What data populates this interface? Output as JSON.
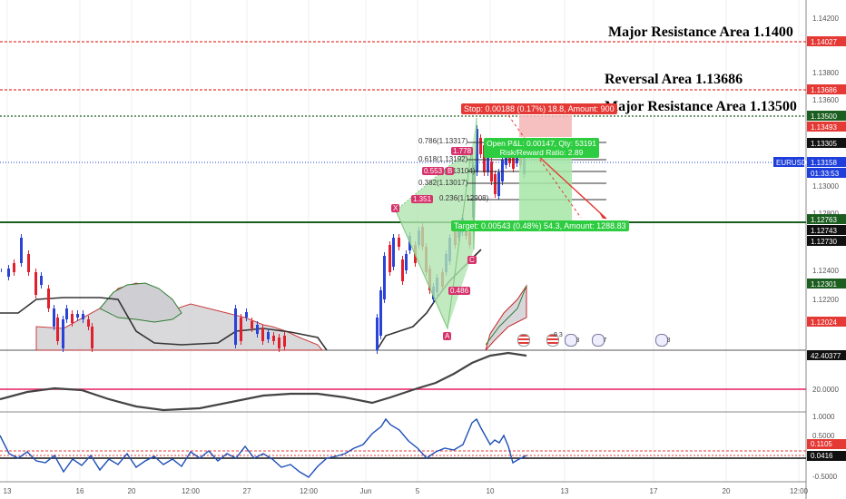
{
  "annotations": {
    "major_resistance_top": "Major Resistance Area 1.1400",
    "reversal_area": "Reversal Area 1.13686",
    "major_resistance_mid": "Major Resistance Area 1.13500"
  },
  "price_axis": {
    "ticks": [
      "1.14200",
      "1.13800",
      "1.13600",
      "1.13000",
      "1.12800",
      "1.12400",
      "1.12200"
    ],
    "labels": {
      "l14027": "1.14027",
      "l13686": "1.13686",
      "l13500": "1.13500",
      "l13493": "1.13493",
      "l13305": "1.13305",
      "symbol": "EURUSD",
      "last": "1.13158",
      "countdown": "01:33:53",
      "l12763": "1.12763",
      "l12743": "1.12743",
      "l12730": "1.12730",
      "l12301": "1.12301",
      "l12024": "1.12024"
    }
  },
  "position": {
    "stop": "Stop: 0.00188 (0.17%) 18.8, Amount: 900",
    "open_pnl": "Open P&L: 0.00147, Qty: 53191",
    "risk_reward": "Risk/Reward Ratio: 2.89",
    "target": "Target: 0.00543 (0.48%) 54.3, Amount: 1288.83"
  },
  "fib_levels": [
    "0.786(1.13317)",
    "0.618(1.13192)",
    "0.5(1.13104)",
    "0.382(1.13017)",
    "0.236(1.12908)"
  ],
  "pattern": {
    "x": "X",
    "a": "A",
    "b": "B",
    "c": "C",
    "r_351": "1.351",
    "r_553": "0.553",
    "r_778": "1.778",
    "r_486": "0.486"
  },
  "event_badges": [
    "9 3",
    "3",
    "7",
    "3"
  ],
  "rsi_axis": {
    "v42": "42.40377",
    "v20": "20.0000"
  },
  "osc_axis": {
    "t1": "1.0000",
    "t05": "0.5000",
    "v1105": "0.1105",
    "v0416": "0.0416",
    "tm05": "-0.5000"
  },
  "time_axis": [
    "13",
    "16",
    "20",
    "12:00",
    "27",
    "12:00",
    "Jun",
    "5",
    "10",
    "13",
    "17",
    "20",
    "12:00"
  ],
  "colors": {
    "red": "#e53935",
    "green": "#1b5e20",
    "blue": "#1e3fdb",
    "bull": "#2a43d6",
    "bear": "#e0202e"
  }
}
